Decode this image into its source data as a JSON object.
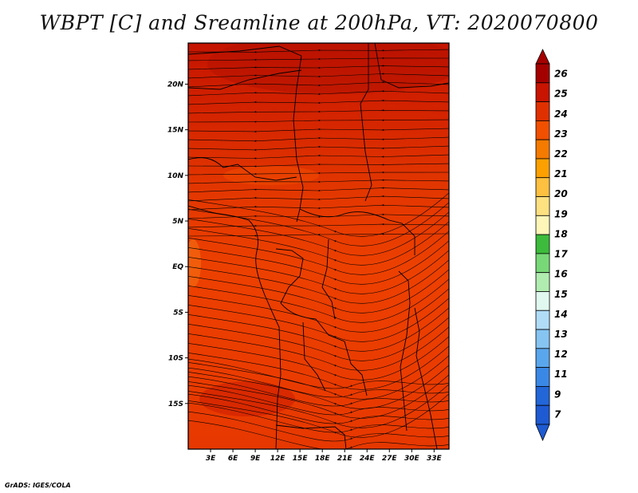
{
  "title": "WBPT [C] and Sreamline at 200hPa, VT: 2020070800",
  "credit": "GrADS: IGES/COLA",
  "map": {
    "lon_labels": [
      "3E",
      "6E",
      "9E",
      "12E",
      "15E",
      "18E",
      "21E",
      "24E",
      "27E",
      "30E",
      "33E"
    ],
    "lon_values": [
      3,
      6,
      9,
      12,
      15,
      18,
      21,
      24,
      27,
      30,
      33
    ],
    "lat_labels": [
      "20N",
      "15N",
      "10N",
      "5N",
      "EQ",
      "5S",
      "10S",
      "15S"
    ],
    "lat_values": [
      20,
      15,
      10,
      5,
      0,
      -5,
      -10,
      -15
    ],
    "lon_range": [
      0,
      35
    ],
    "lat_range": [
      -20,
      24.5
    ],
    "field_colors": {
      "north": "#c81800",
      "mid": "#e03200",
      "south": "#f04200",
      "warm_patch": "#b41200",
      "cool_patch": "#f26a10"
    },
    "streamline_color": "#000000",
    "border_color": "#000000"
  },
  "colorbar": {
    "labels": [
      "26",
      "25",
      "24",
      "23",
      "22",
      "21",
      "20",
      "19",
      "18",
      "17",
      "16",
      "15",
      "14",
      "13",
      "12",
      "11",
      "9",
      "7"
    ],
    "colors": [
      "#a50000",
      "#c81400",
      "#e03000",
      "#f05000",
      "#f57a00",
      "#fba000",
      "#fdc040",
      "#fde080",
      "#fef5b8",
      "#3cbb3c",
      "#78d878",
      "#b0ecb0",
      "#e0f8f0",
      "#b0dcf8",
      "#86c4f2",
      "#5aa6ec",
      "#3a88e6",
      "#2266d8",
      "#1e5ad2"
    ],
    "max_color": "#a50000",
    "min_color": "#1e5ad2"
  }
}
